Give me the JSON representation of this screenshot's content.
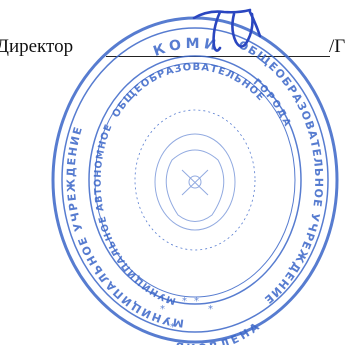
{
  "signature_block": {
    "role_label": "Директор",
    "name_fragment": "/Г"
  },
  "stamp": {
    "outer_ring_top": "КОМИ",
    "outer_ring_left": "МУНИЦИПАЛЬНОЕ УЧРЕЖДЕНИЕ",
    "inner_ring_top": "ОБЩЕОБРАЗОВАТЕЛЬНОЕ",
    "inner_ring_left": "МУНИЦИПАЛЬНОЕ АВТОНОМНОЕ",
    "outer_ring_right": "ОБЩЕОБРАЗОВАТЕЛЬНОЕ УЧРЕЖДЕНИЕ",
    "inner_ring_right": "ГОРОДА",
    "outer_ring_bottom": "ЯКОВЛЕНА",
    "color": "#3a66c8"
  },
  "signature": {
    "color": "#2a46c0"
  }
}
